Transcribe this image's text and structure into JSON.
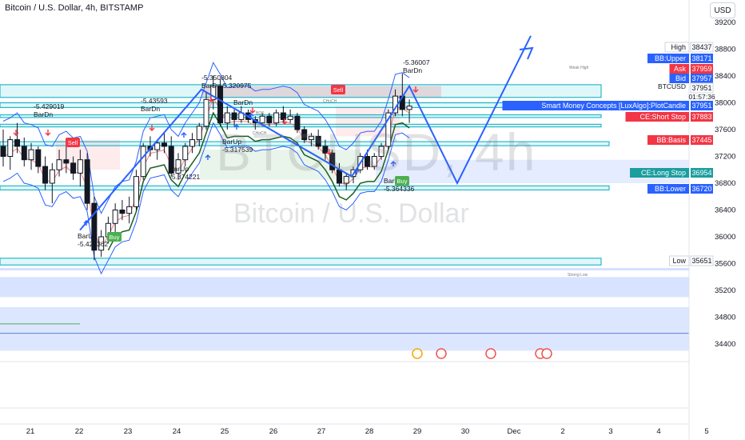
{
  "header": {
    "title": "Bitcoin / U.S. Dollar, 4h, BITSTAMP",
    "currency_button": "USD"
  },
  "watermark": {
    "symbol": "BTCUSD, 4h",
    "name": "Bitcoin / U.S. Dollar"
  },
  "colors": {
    "up": "#ffffff",
    "down": "#131722",
    "projection": "#2962ff",
    "fvg_cyan": "#00bcd4",
    "sell": "#f23645",
    "buy": "#4caf50",
    "bb_band": "#2962ff",
    "ce_long": "#1b5e20",
    "bb_basis": "#f57c7c"
  },
  "price_scale": {
    "ticks": [
      "39200",
      "38800",
      "38400",
      "38000",
      "37600",
      "37200",
      "36800",
      "36400",
      "36000",
      "35600",
      "35200",
      "34800",
      "34400"
    ],
    "countdown": "01:57:36",
    "symbol_tag": "BTCUSD"
  },
  "price_labels": [
    {
      "name": "High",
      "value": "38437",
      "style": "plain"
    },
    {
      "name": "BB:Upper",
      "value": "38171",
      "style": "blue"
    },
    {
      "name": "Ask",
      "value": "37959",
      "style": "red"
    },
    {
      "name": "Bid",
      "value": "37957",
      "style": "blue"
    },
    {
      "name": "",
      "value": "37951",
      "style": "plain"
    },
    {
      "name": "Smart Money Concepts [LuxAlgo]:PlotCandle",
      "value": "37951",
      "style": "blue"
    },
    {
      "name": "CE:Short Stop",
      "value": "37883",
      "style": "red"
    },
    {
      "name": "BB:Basis",
      "value": "37445",
      "style": "red"
    },
    {
      "name": "CE:Long Stop",
      "value": "36954",
      "style": "green"
    },
    {
      "name": "BB:Lower",
      "value": "36720",
      "style": "blue"
    },
    {
      "name": "Low",
      "value": "35651",
      "style": "plain"
    }
  ],
  "time_axis": [
    "21",
    "22",
    "23",
    "24",
    "25",
    "26",
    "27",
    "28",
    "29",
    "30",
    "Dec",
    "2",
    "3",
    "4",
    "5"
  ],
  "annotations": {
    "bar_labels": [
      {
        "top": "BarUp",
        "bottom": "-5.427362"
      },
      {
        "top": "-5.429019",
        "bottom": "BarDn"
      },
      {
        "top": "-5.43593",
        "bottom": "BarDn"
      },
      {
        "top": "BarUp",
        "bottom": "-5.374221"
      },
      {
        "top": "-5.350804",
        "bottom": "BarDn-5.320975"
      },
      {
        "top": "",
        "bottom": "BarDn"
      },
      {
        "top": "BarUp",
        "bottom": "-5.317539"
      },
      {
        "top": "-5.36007",
        "bottom": "BarDn"
      },
      {
        "top": "BarUp",
        "bottom": "-5.364336"
      }
    ],
    "signals": [
      "Sell",
      "Buy",
      "Sell",
      "Buy"
    ],
    "tiny": [
      "Weak High",
      "CHoCH",
      "BOS",
      "Strong Low",
      "CHoCH"
    ]
  },
  "chart_data": {
    "type": "candlestick",
    "title": "Bitcoin / U.S. Dollar, 4h, BITSTAMP",
    "xlabel": "",
    "ylabel": "",
    "ylim": [
      34200,
      39400
    ],
    "x_ticks": [
      "21",
      "22",
      "23",
      "24",
      "25",
      "26",
      "27",
      "28",
      "29",
      "30",
      "Dec",
      "2",
      "3",
      "4",
      "5"
    ],
    "candles": [
      {
        "o": 37350,
        "h": 37600,
        "l": 37050,
        "c": 37200
      },
      {
        "o": 37200,
        "h": 37500,
        "l": 37000,
        "c": 37450
      },
      {
        "o": 37450,
        "h": 37700,
        "l": 37250,
        "c": 37350
      },
      {
        "o": 37350,
        "h": 37480,
        "l": 37050,
        "c": 37150
      },
      {
        "o": 37150,
        "h": 37400,
        "l": 37000,
        "c": 37300
      },
      {
        "o": 37300,
        "h": 37350,
        "l": 36950,
        "c": 37050
      },
      {
        "o": 37050,
        "h": 37200,
        "l": 36700,
        "c": 36800
      },
      {
        "o": 36800,
        "h": 37100,
        "l": 36500,
        "c": 37000
      },
      {
        "o": 37000,
        "h": 37300,
        "l": 36900,
        "c": 37150
      },
      {
        "o": 37150,
        "h": 37350,
        "l": 36950,
        "c": 37100
      },
      {
        "o": 37100,
        "h": 37200,
        "l": 36850,
        "c": 36950
      },
      {
        "o": 36950,
        "h": 37300,
        "l": 36750,
        "c": 37150
      },
      {
        "o": 37150,
        "h": 37250,
        "l": 36400,
        "c": 36500
      },
      {
        "o": 36500,
        "h": 36600,
        "l": 35651,
        "c": 35800
      },
      {
        "o": 35800,
        "h": 36100,
        "l": 35700,
        "c": 36000
      },
      {
        "o": 36000,
        "h": 36300,
        "l": 35900,
        "c": 36200
      },
      {
        "o": 36200,
        "h": 36500,
        "l": 36050,
        "c": 36400
      },
      {
        "o": 36400,
        "h": 36550,
        "l": 36250,
        "c": 36350
      },
      {
        "o": 36350,
        "h": 36600,
        "l": 36200,
        "c": 36450
      },
      {
        "o": 36450,
        "h": 37000,
        "l": 36400,
        "c": 36900
      },
      {
        "o": 36900,
        "h": 37400,
        "l": 36850,
        "c": 37350
      },
      {
        "o": 37350,
        "h": 37500,
        "l": 37200,
        "c": 37300
      },
      {
        "o": 37300,
        "h": 37450,
        "l": 37150,
        "c": 37400
      },
      {
        "o": 37400,
        "h": 37550,
        "l": 37250,
        "c": 37350
      },
      {
        "o": 37350,
        "h": 37500,
        "l": 36900,
        "c": 36950
      },
      {
        "o": 36950,
        "h": 37250,
        "l": 36850,
        "c": 37150
      },
      {
        "o": 37150,
        "h": 37400,
        "l": 37050,
        "c": 37350
      },
      {
        "o": 37350,
        "h": 37550,
        "l": 37250,
        "c": 37450
      },
      {
        "o": 37450,
        "h": 37700,
        "l": 37350,
        "c": 37650
      },
      {
        "o": 37650,
        "h": 38150,
        "l": 37600,
        "c": 38050
      },
      {
        "o": 38050,
        "h": 38400,
        "l": 37900,
        "c": 38250
      },
      {
        "o": 38250,
        "h": 38350,
        "l": 37650,
        "c": 37700
      },
      {
        "o": 37700,
        "h": 37950,
        "l": 37600,
        "c": 37850
      },
      {
        "o": 37850,
        "h": 37900,
        "l": 37650,
        "c": 37750
      },
      {
        "o": 37750,
        "h": 37950,
        "l": 37700,
        "c": 37850
      },
      {
        "o": 37850,
        "h": 37900,
        "l": 37700,
        "c": 37750
      },
      {
        "o": 37750,
        "h": 37800,
        "l": 37600,
        "c": 37700
      },
      {
        "o": 37700,
        "h": 37850,
        "l": 37650,
        "c": 37800
      },
      {
        "o": 37800,
        "h": 37850,
        "l": 37650,
        "c": 37700
      },
      {
        "o": 37700,
        "h": 37900,
        "l": 37650,
        "c": 37850
      },
      {
        "o": 37850,
        "h": 37950,
        "l": 37700,
        "c": 37750
      },
      {
        "o": 37750,
        "h": 37900,
        "l": 37700,
        "c": 37800
      },
      {
        "o": 37800,
        "h": 37850,
        "l": 37550,
        "c": 37600
      },
      {
        "o": 37600,
        "h": 37650,
        "l": 37400,
        "c": 37450
      },
      {
        "o": 37450,
        "h": 37550,
        "l": 37350,
        "c": 37500
      },
      {
        "o": 37500,
        "h": 37600,
        "l": 37300,
        "c": 37350
      },
      {
        "o": 37350,
        "h": 37450,
        "l": 37150,
        "c": 37250
      },
      {
        "o": 37250,
        "h": 37300,
        "l": 36950,
        "c": 37000
      },
      {
        "o": 37000,
        "h": 37100,
        "l": 36750,
        "c": 36800
      },
      {
        "o": 36800,
        "h": 36950,
        "l": 36700,
        "c": 36900
      },
      {
        "o": 36900,
        "h": 37050,
        "l": 36800,
        "c": 37000
      },
      {
        "o": 37000,
        "h": 37250,
        "l": 36950,
        "c": 37200
      },
      {
        "o": 37200,
        "h": 37300,
        "l": 37000,
        "c": 37050
      },
      {
        "o": 37050,
        "h": 37250,
        "l": 37000,
        "c": 37200
      },
      {
        "o": 37200,
        "h": 37400,
        "l": 37150,
        "c": 37350
      },
      {
        "o": 37350,
        "h": 37900,
        "l": 37300,
        "c": 37850
      },
      {
        "o": 37850,
        "h": 38200,
        "l": 37800,
        "c": 38100
      },
      {
        "o": 38100,
        "h": 38437,
        "l": 37800,
        "c": 37900
      },
      {
        "o": 37900,
        "h": 38050,
        "l": 37700,
        "c": 37951
      }
    ],
    "projection_path": [
      {
        "x": "22",
        "y": 36100
      },
      {
        "x": "24",
        "y": 38200
      },
      {
        "x": "27",
        "y": 36900
      },
      {
        "x": "28.8",
        "y": 38250
      },
      {
        "x": "29.8",
        "y": 36800
      },
      {
        "x": "1.5 Dec",
        "y": 39000
      }
    ]
  }
}
